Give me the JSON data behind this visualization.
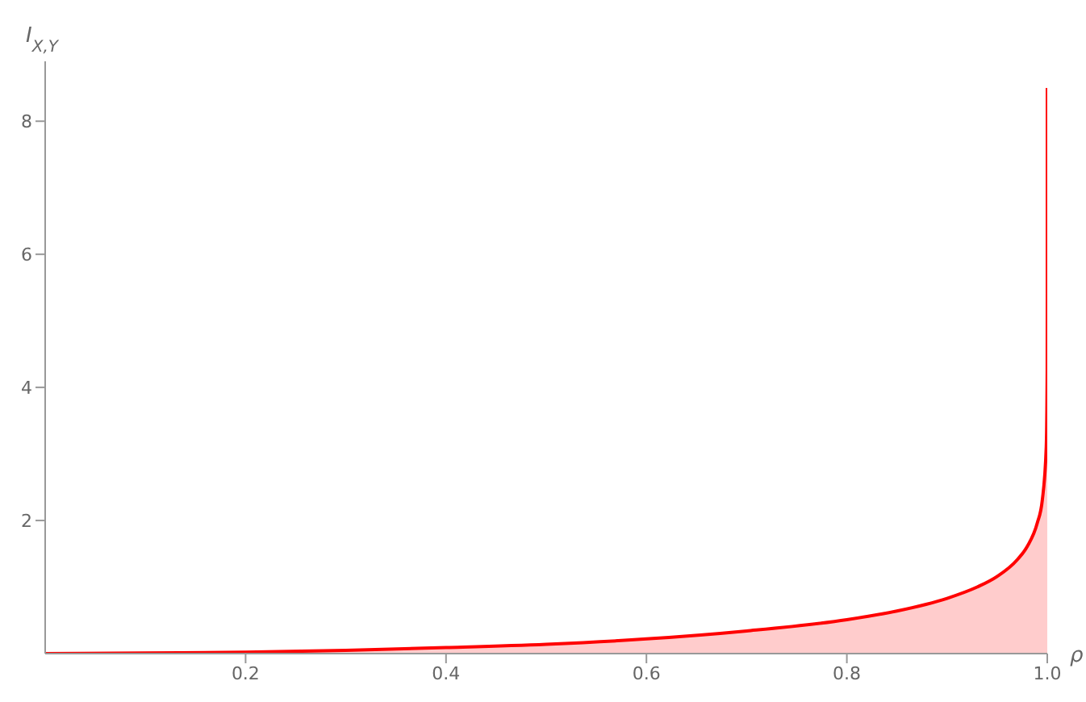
{
  "chart_data": {
    "type": "area",
    "xlabel": "ρ",
    "ylabel": "I$_{X,Y}$",
    "x": [
      0,
      0.1,
      0.2,
      0.3,
      0.4,
      0.5,
      0.6,
      0.7,
      0.8,
      0.85,
      0.9,
      0.93,
      0.95,
      0.97,
      0.98,
      0.99,
      0.995,
      0.999,
      0.9999,
      0.99999,
      1
    ],
    "series": [
      {
        "color": "#ff0000",
        "values": [
          0,
          0.01,
          0.02,
          0.05,
          0.09,
          0.14,
          0.22,
          0.34,
          0.51,
          0.64,
          0.83,
          1.0,
          1.16,
          1.41,
          1.61,
          1.96,
          2.3,
          3.11,
          4.26,
          5.41,
          8.5
        ]
      }
    ],
    "xlim": [
      0,
      1
    ],
    "xticks": [
      0.2,
      0.4,
      0.6,
      0.8,
      {
        "value": 1,
        "label": "1.0"
      }
    ],
    "ylim": [
      0,
      8.9
    ],
    "yticks": [
      2,
      4,
      6,
      8
    ],
    "grid": false
  }
}
